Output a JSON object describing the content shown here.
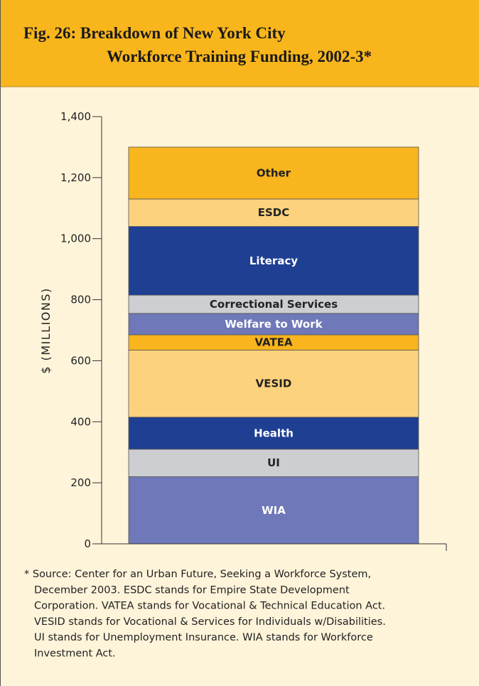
{
  "chart_data": {
    "type": "stacked_bar",
    "title": [
      "Fig. 26: Breakdown of New York City",
      "Workforce Training Funding, 2002-3*"
    ],
    "y_label": "$ (MILLIONS)",
    "categories": [
      null
    ],
    "series": [
      {
        "name": "WIA",
        "color": "#6f78b8",
        "values": [
          220
        ]
      },
      {
        "name": "UI",
        "color": "#cdced1",
        "values": [
          90
        ]
      },
      {
        "name": "Health",
        "color": "#1f3f93",
        "values": [
          105
        ]
      },
      {
        "name": "VESID",
        "color": "#fdd27c",
        "values": [
          220
        ]
      },
      {
        "name": "VATEA",
        "color": "#f9b51d",
        "values": [
          50
        ]
      },
      {
        "name": "Welfare to Work",
        "color": "#6f78b8",
        "values": [
          70
        ]
      },
      {
        "name": "Correctional Services",
        "color": "#cdced1",
        "values": [
          60
        ]
      },
      {
        "name": "Literacy",
        "color": "#1f3f93",
        "values": [
          225
        ]
      },
      {
        "name": "ESDC",
        "color": "#fdd27c",
        "values": [
          90
        ]
      },
      {
        "name": "Other",
        "color": "#f9b51d",
        "values": [
          170
        ]
      }
    ],
    "ylim": [
      0,
      1400
    ],
    "yticks": [
      0,
      {
        "value": 200,
        "label": "200"
      },
      400,
      600,
      800,
      {
        "value": 1000,
        "label": "1,000"
      },
      {
        "value": 1200,
        "label": "1,200"
      },
      {
        "value": 1400,
        "label": "1,400"
      }
    ],
    "footnote": [
      "* Source: Center for an Urban Future, Seeking a Workforce System,",
      "December 2003. ESDC stands for Empire State Development",
      "Corporation. VATEA stands for Vocational & Technical Education Act.",
      "VESID stands for Vocational & Services for Individuals w/Disabilities.",
      "UI stands for Unemployment Insurance. WIA stands for Workforce",
      "Investment Act."
    ]
  }
}
